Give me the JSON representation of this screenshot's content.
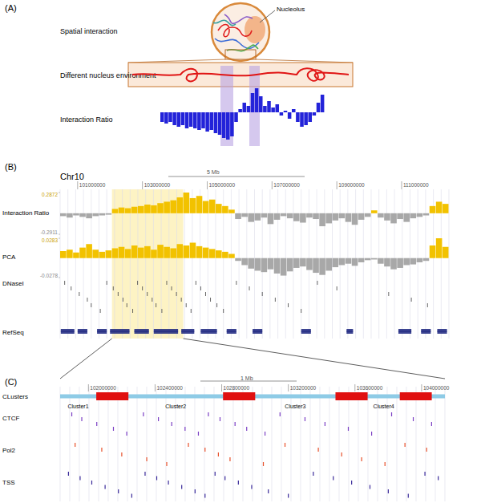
{
  "figure": {
    "panel_labels": [
      "(A)",
      "(B)",
      "(C)"
    ],
    "diagram": {
      "spatial": "Spatial interaction",
      "nucleolus": "Nucleolus",
      "environment": "Different nucleus environment"
    },
    "browser": {
      "chromosome": "Chr10",
      "scale_label": "5 Mb",
      "highlight": [
        102060000,
        104260000
      ],
      "dnase": {
        "label": "DNaseI",
        "color": "#555555",
        "positions": [
          100600000,
          100800000,
          101050000,
          101300000,
          101420000,
          101700000,
          101900000,
          102100000,
          102250000,
          102400000,
          102520000,
          102700000,
          102850000,
          103000000,
          103150000,
          103300000,
          103420000,
          103600000,
          103750000,
          103900000,
          104050000,
          104200000,
          104350000,
          104500000,
          104650000,
          104800000,
          104950000,
          105100000,
          105300000,
          105500000,
          105900000,
          106300000,
          106700000,
          107100000,
          107500000,
          107900000,
          108400000,
          109000000,
          110600000,
          111300000,
          111800000
        ]
      },
      "refseq": {
        "label": "RefSeq",
        "color": "#1a237e",
        "genes": [
          [
            100480000,
            100900000
          ],
          [
            101000000,
            101300000
          ],
          [
            101600000,
            101900000
          ],
          [
            102000000,
            102600000
          ],
          [
            102750000,
            103200000
          ],
          [
            103350000,
            104100000
          ],
          [
            104200000,
            104600000
          ],
          [
            104800000,
            105300000
          ],
          [
            105600000,
            105900000
          ],
          [
            106400000,
            106700000
          ],
          [
            107900000,
            108200000
          ],
          [
            109300000,
            109500000
          ],
          [
            110900000,
            111300000
          ],
          [
            111600000,
            111900000
          ],
          [
            112100000,
            112400000
          ]
        ]
      }
    },
    "zoom": {
      "xlim": [
        101830000,
        104140000
      ],
      "xticks": [
        102000000,
        102400000,
        102800000,
        103200000,
        103600000,
        104000000
      ],
      "scale_label": "1 Mb",
      "clusters": {
        "label": "CLusters",
        "line_color": "#8ecbe6",
        "color": "#e01010",
        "items": [
          {
            "name": "Cluster1",
            "start": 101830000,
            "end": 102047000
          },
          {
            "name": "Cluster2",
            "start": 102240000,
            "end": 102808000
          },
          {
            "name": "Cluster3",
            "start": 103001000,
            "end": 103483000
          },
          {
            "name": "Cluster4",
            "start": 103676000,
            "end": 103869000
          }
        ],
        "boundaries": [
          [
            102047000,
            102240000
          ],
          [
            102808000,
            103001000
          ],
          [
            103483000,
            103676000
          ],
          [
            103869000,
            104061000
          ]
        ]
      },
      "ctcf": {
        "label": "CTCF",
        "color": "#7b3fc4",
        "positions": [
          101900000,
          101960000,
          102050000,
          102150000,
          102230000,
          102330000,
          102420000,
          102500000,
          102580000,
          102660000,
          102720000,
          102790000,
          102880000,
          102950000,
          103060000,
          103150000,
          103300000,
          103420000,
          103560000,
          103700000,
          103820000,
          103950000,
          104060000
        ]
      },
      "pol2": {
        "label": "Pol2",
        "color": "#e8502a",
        "positions": [
          101920000,
          102080000,
          102200000,
          102350000,
          102470000,
          102600000,
          102700000,
          102780000,
          102850000,
          103050000,
          103180000,
          103380000,
          103520000,
          103640000,
          103780000,
          103900000,
          104030000
        ]
      },
      "tss": {
        "label": "TSS",
        "color": "#3a2a9a",
        "positions": [
          101880000,
          101950000,
          102020000,
          102100000,
          102180000,
          102260000,
          102340000,
          102410000,
          102480000,
          102560000,
          102640000,
          102700000,
          102760000,
          102820000,
          102900000,
          102980000,
          103080000,
          103200000,
          103350000,
          103470000,
          103580000,
          103690000,
          103800000,
          103920000,
          104020000,
          104100000
        ]
      }
    }
  },
  "chart_data": [
    {
      "type": "bar",
      "title": "Interaction Ratio",
      "color": "#2323d9",
      "tick_labels": false,
      "ylim": [
        -1,
        1
      ],
      "categories": [
        null,
        null,
        null,
        null,
        null,
        null,
        null,
        null,
        null,
        null,
        null,
        null,
        null,
        null,
        null,
        null,
        null,
        null,
        null,
        null,
        null,
        null,
        null,
        null,
        null,
        null,
        null,
        null,
        null,
        null,
        null,
        null,
        null,
        null,
        null,
        null,
        null,
        null,
        null,
        null
      ],
      "values": [
        -0.3,
        -0.35,
        -0.3,
        -0.4,
        -0.45,
        -0.4,
        -0.5,
        -0.45,
        -0.5,
        -0.55,
        -0.5,
        -0.6,
        -0.55,
        -0.65,
        -0.7,
        -0.8,
        -0.85,
        -0.75,
        -0.3,
        0.1,
        0.3,
        0.2,
        0.6,
        0.75,
        0.5,
        0.2,
        0.35,
        0.15,
        0.25,
        -0.1,
        0.05,
        -0.2,
        0.1,
        -0.3,
        -0.45,
        -0.4,
        -0.3,
        -0.1,
        0.3,
        0.55
      ]
    },
    {
      "type": "bar",
      "title": "Interaction Ratio",
      "color": "#f2c200",
      "tick_labels": true,
      "xlim": [
        100460000,
        112460000
      ],
      "xticks": [
        101000000,
        103000000,
        105000000,
        107000000,
        109000000,
        111000000
      ],
      "ylim": [
        -0.2911,
        0.2872
      ],
      "yticks": [
        -0.2911,
        0.2872
      ],
      "x": [
        100460000,
        100660000,
        100860000,
        101060000,
        101260000,
        101460000,
        101660000,
        101860000,
        102060000,
        102260000,
        102460000,
        102660000,
        102860000,
        103060000,
        103260000,
        103460000,
        103660000,
        103860000,
        104060000,
        104260000,
        104460000,
        104660000,
        104860000,
        105060000,
        105260000,
        105460000,
        105660000,
        105860000,
        106060000,
        106260000,
        106460000,
        106660000,
        106860000,
        107060000,
        107260000,
        107460000,
        107660000,
        107860000,
        108060000,
        108260000,
        108460000,
        108660000,
        108860000,
        109060000,
        109260000,
        109460000,
        109660000,
        109860000,
        110060000,
        110260000,
        110460000,
        110660000,
        110860000,
        111060000,
        111260000,
        111460000,
        111660000,
        111860000,
        112060000,
        112260000
      ],
      "values": [
        -0.04,
        -0.06,
        -0.03,
        -0.05,
        -0.07,
        -0.04,
        -0.03,
        -0.02,
        0.06,
        0.08,
        0.07,
        0.09,
        0.1,
        0.12,
        0.11,
        0.14,
        0.16,
        0.18,
        0.22,
        0.2872,
        0.21,
        0.24,
        0.17,
        0.19,
        0.13,
        0.1,
        0.05,
        -0.08,
        -0.05,
        -0.12,
        -0.1,
        -0.06,
        -0.15,
        -0.09,
        -0.04,
        -0.07,
        -0.11,
        -0.13,
        -0.06,
        -0.08,
        -0.18,
        -0.14,
        -0.1,
        -0.07,
        -0.12,
        -0.16,
        -0.09,
        -0.05,
        0.04,
        -0.06,
        -0.1,
        -0.14,
        -0.08,
        -0.12,
        -0.07,
        -0.05,
        -0.03,
        0.1,
        0.16,
        0.13
      ]
    },
    {
      "type": "bar",
      "title": "PCA",
      "color": "#f2c200",
      "tick_labels": "y",
      "xlim": [
        100460000,
        112460000
      ],
      "ylim": [
        -0.0278,
        0.0283
      ],
      "yticks": [
        -0.0278,
        0.0283
      ],
      "x": [
        100460000,
        100660000,
        100860000,
        101060000,
        101260000,
        101460000,
        101660000,
        101860000,
        102060000,
        102260000,
        102460000,
        102660000,
        102860000,
        103060000,
        103260000,
        103460000,
        103660000,
        103860000,
        104060000,
        104260000,
        104460000,
        104660000,
        104860000,
        105060000,
        105260000,
        105460000,
        105660000,
        105860000,
        106060000,
        106260000,
        106460000,
        106660000,
        106860000,
        107060000,
        107260000,
        107460000,
        107660000,
        107860000,
        108060000,
        108260000,
        108460000,
        108660000,
        108860000,
        109060000,
        109260000,
        109460000,
        109660000,
        109860000,
        110060000,
        110260000,
        110460000,
        110660000,
        110860000,
        111060000,
        111260000,
        111460000,
        111660000,
        111860000,
        112060000,
        112260000
      ],
      "values": [
        0.01,
        0.012,
        0.008,
        0.015,
        0.02,
        0.012,
        0.009,
        0.011,
        0.014,
        0.016,
        0.013,
        0.018,
        0.015,
        0.017,
        0.012,
        0.019,
        0.016,
        0.014,
        0.02,
        0.018,
        0.022,
        0.017,
        0.015,
        0.013,
        0.011,
        0.009,
        0.006,
        -0.004,
        -0.01,
        -0.015,
        -0.018,
        -0.02,
        -0.016,
        -0.022,
        -0.025,
        -0.019,
        -0.014,
        -0.012,
        -0.017,
        -0.021,
        -0.024,
        -0.018,
        -0.013,
        -0.01,
        -0.008,
        -0.011,
        -0.006,
        -0.003,
        -0.002,
        -0.008,
        -0.012,
        -0.016,
        -0.014,
        -0.01,
        -0.009,
        -0.006,
        -0.004,
        0.018,
        0.0283,
        0.016
      ]
    }
  ]
}
